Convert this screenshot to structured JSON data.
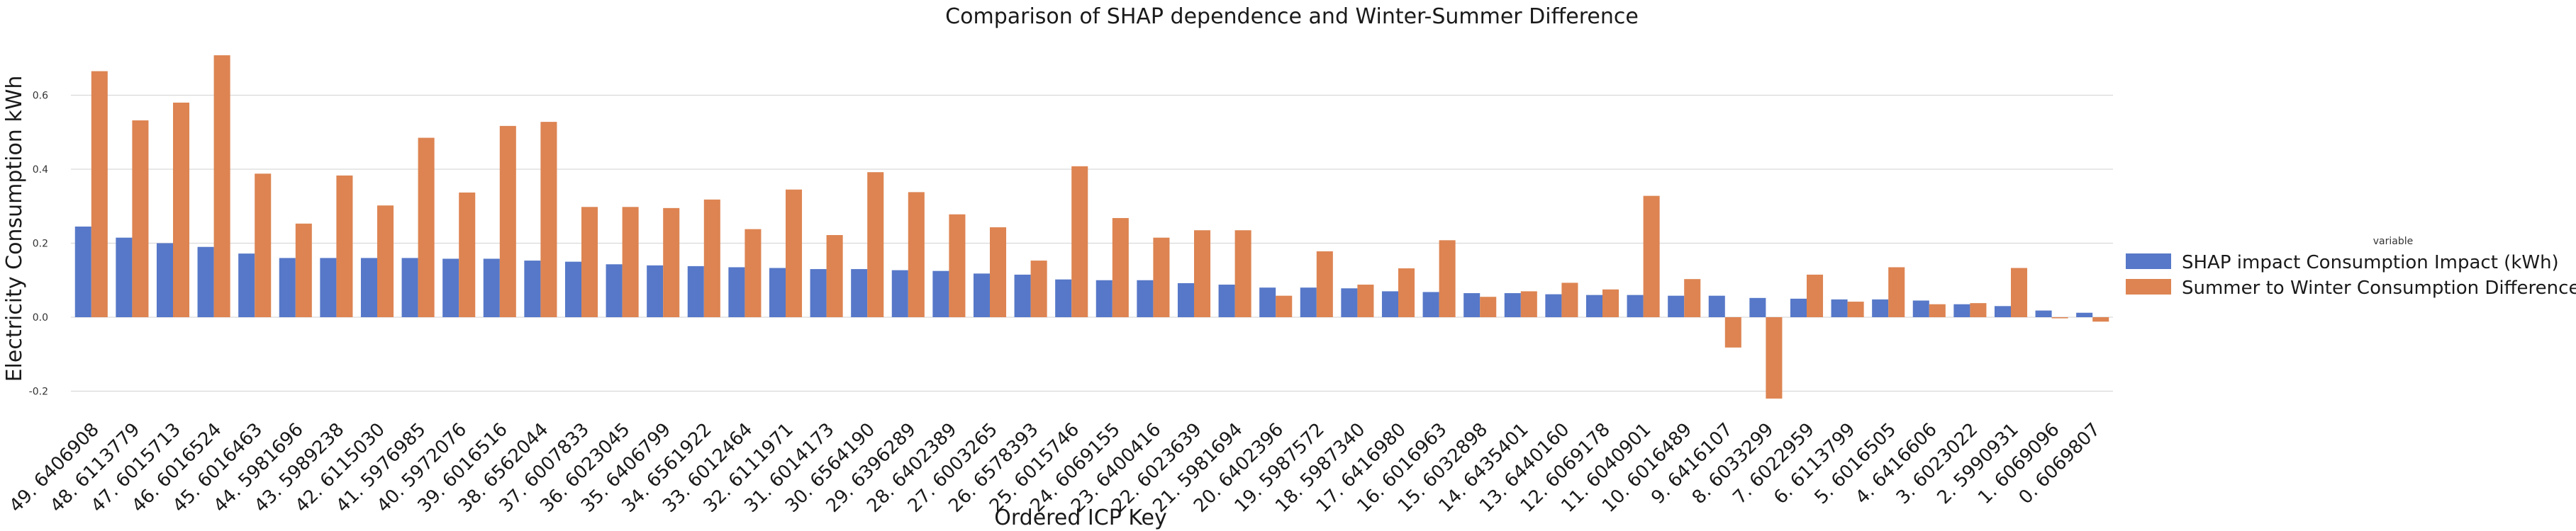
{
  "chart_data": {
    "type": "bar",
    "title": "Comparison of SHAP dependence and Winter-Summer Difference",
    "xlabel": "Ordered ICP Key",
    "ylabel": "Electricity Consumption kWh",
    "ylim": [
      -0.27,
      0.72
    ],
    "yticks": [
      "-0.2",
      "0.0",
      "0.2",
      "0.4",
      "0.6"
    ],
    "grid": true,
    "legend": {
      "title": "variable",
      "placement": "right"
    },
    "categories": [
      "49. 6406908",
      "48. 6113779",
      "47. 6015713",
      "46. 6016524",
      "45. 6016463",
      "44. 5981696",
      "43. 5989238",
      "42. 6115030",
      "41. 5976985",
      "40. 5972076",
      "39. 6016516",
      "38. 6562044",
      "37. 6007833",
      "36. 6023045",
      "35. 6406799",
      "34. 6561922",
      "33. 6012464",
      "32. 6111971",
      "31. 6014173",
      "30. 6564190",
      "29. 6396289",
      "28. 6402389",
      "27. 6003265",
      "26. 6578393",
      "25. 6015746",
      "24. 6069155",
      "23. 6400416",
      "22. 6023639",
      "21. 5981694",
      "20. 6402396",
      "19. 5987572",
      "18. 5987340",
      "17. 6416980",
      "16. 6016963",
      "15. 6032898",
      "14. 6435401",
      "13. 6440160",
      "12. 6069178",
      "11. 6040901",
      "10. 6016489",
      "9. 6416107",
      "8. 6033299",
      "7. 6022959",
      "6. 6113799",
      "5. 6016505",
      "4. 6416606",
      "3. 6023022",
      "2. 5990931",
      "1. 6069096",
      "0. 6069807"
    ],
    "series": [
      {
        "name": "SHAP impact Consumption Impact (kWh)",
        "color": "#5778c8",
        "values": [
          0.245,
          0.215,
          0.2,
          0.19,
          0.172,
          0.16,
          0.16,
          0.16,
          0.16,
          0.158,
          0.158,
          0.153,
          0.15,
          0.143,
          0.14,
          0.138,
          0.135,
          0.133,
          0.13,
          0.13,
          0.127,
          0.125,
          0.118,
          0.115,
          0.102,
          0.1,
          0.1,
          0.092,
          0.088,
          0.08,
          0.08,
          0.078,
          0.07,
          0.068,
          0.065,
          0.065,
          0.062,
          0.06,
          0.06,
          0.058,
          0.058,
          0.052,
          0.05,
          0.048,
          0.048,
          0.045,
          0.035,
          0.03,
          0.018,
          0.012
        ]
      },
      {
        "name": "Summer to Winter Consumption Difference (kWh)",
        "color": "#dd8452",
        "values": [
          0.665,
          0.532,
          0.58,
          0.708,
          0.388,
          0.253,
          0.383,
          0.302,
          0.485,
          0.337,
          0.517,
          0.528,
          0.298,
          0.298,
          0.295,
          0.318,
          0.238,
          0.345,
          0.222,
          0.392,
          0.338,
          0.278,
          0.243,
          0.153,
          0.408,
          0.268,
          0.215,
          0.235,
          0.235,
          0.058,
          0.178,
          0.088,
          0.132,
          0.208,
          0.055,
          0.07,
          0.093,
          0.075,
          0.328,
          0.103,
          -0.082,
          -0.22,
          0.115,
          0.042,
          0.135,
          0.035,
          0.038,
          0.133,
          -0.003,
          -0.012
        ]
      }
    ]
  }
}
